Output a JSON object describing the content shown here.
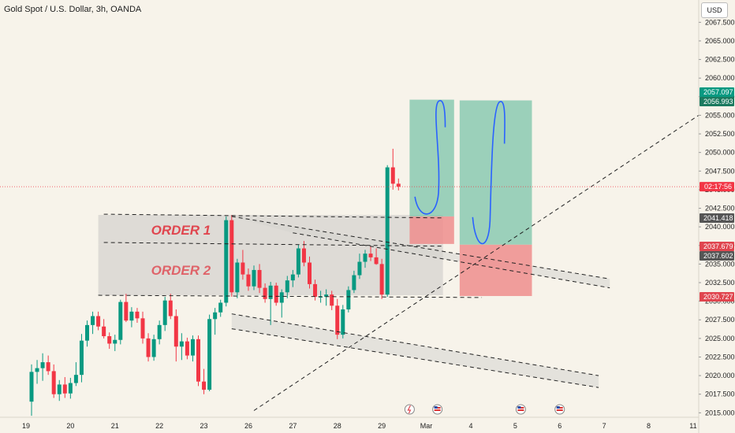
{
  "header": {
    "title": "Gold Spot / U.S. Dollar, 3h, OANDA",
    "currency_button": "USD"
  },
  "colors": {
    "background": "#f7f3ea",
    "up": "#089981",
    "down": "#f23645",
    "zone_fill": "#d6d3cf",
    "profit": "#7cc4a9",
    "loss": "#ee8d8d",
    "hand_drawn": "#2a62ff"
  },
  "chart_data": {
    "type": "candlestick",
    "title": "Gold Spot / U.S. Dollar, 3h, OANDA",
    "y_axis": {
      "range": [
        2014.4,
        2070.5
      ],
      "ticks": [
        "2067.500",
        "2065.000",
        "2062.500",
        "2060.000",
        "2057.500",
        "2055.000",
        "2052.500",
        "2050.000",
        "2047.500",
        "2045.000",
        "2042.500",
        "2040.000",
        "2037.500",
        "2035.000",
        "2032.500",
        "2030.000",
        "2027.500",
        "2025.000",
        "2022.500",
        "2020.000",
        "2017.500",
        "2015.000"
      ]
    },
    "x_axis": {
      "ticks": [
        {
          "label": "19",
          "bar": -1
        },
        {
          "label": "20",
          "bar": 7
        },
        {
          "label": "21",
          "bar": 15
        },
        {
          "label": "22",
          "bar": 23
        },
        {
          "label": "23",
          "bar": 31
        },
        {
          "label": "26",
          "bar": 39
        },
        {
          "label": "27",
          "bar": 47
        },
        {
          "label": "28",
          "bar": 55
        },
        {
          "label": "29",
          "bar": 63
        },
        {
          "label": "Mar",
          "bar": 71
        },
        {
          "label": "4",
          "bar": 79
        },
        {
          "label": "5",
          "bar": 87
        },
        {
          "label": "6",
          "bar": 95
        },
        {
          "label": "7",
          "bar": 103
        },
        {
          "label": "8",
          "bar": 111
        },
        {
          "label": "11",
          "bar": 119
        }
      ]
    },
    "candles": [
      [
        2016.5,
        2021.5,
        2014.6,
        2020.5
      ],
      [
        2020.5,
        2022.1,
        2018.9,
        2021.0
      ],
      [
        2021.0,
        2023.0,
        2019.3,
        2021.8
      ],
      [
        2021.8,
        2022.7,
        2020.1,
        2020.6
      ],
      [
        2020.6,
        2021.5,
        2017.0,
        2017.5
      ],
      [
        2017.5,
        2019.4,
        2016.6,
        2018.8
      ],
      [
        2018.8,
        2019.8,
        2017.0,
        2017.6
      ],
      [
        2017.6,
        2019.7,
        2016.9,
        2019.0
      ],
      [
        2019.0,
        2021.8,
        2018.6,
        2020.1
      ],
      [
        2020.1,
        2025.6,
        2019.1,
        2024.7
      ],
      [
        2024.7,
        2027.4,
        2023.9,
        2026.8
      ],
      [
        2026.8,
        2028.6,
        2025.6,
        2028.0
      ],
      [
        2028.0,
        2028.6,
        2026.1,
        2026.6
      ],
      [
        2026.6,
        2027.6,
        2025.0,
        2025.3
      ],
      [
        2025.3,
        2025.8,
        2023.6,
        2024.3
      ],
      [
        2024.3,
        2025.5,
        2023.3,
        2024.8
      ],
      [
        2024.8,
        2030.2,
        2024.2,
        2029.9
      ],
      [
        2029.9,
        2031.0,
        2027.2,
        2027.4
      ],
      [
        2027.4,
        2029.2,
        2026.5,
        2028.6
      ],
      [
        2028.6,
        2029.1,
        2027.1,
        2027.7
      ],
      [
        2027.7,
        2028.6,
        2024.3,
        2025.0
      ],
      [
        2025.0,
        2025.7,
        2021.9,
        2022.5
      ],
      [
        2022.5,
        2025.5,
        2022.0,
        2024.9
      ],
      [
        2024.9,
        2027.4,
        2024.2,
        2026.8
      ],
      [
        2026.8,
        2030.6,
        2026.0,
        2030.1
      ],
      [
        2030.1,
        2031.0,
        2027.6,
        2028.0
      ],
      [
        2028.0,
        2028.9,
        2021.9,
        2023.9
      ],
      [
        2023.9,
        2025.7,
        2022.1,
        2024.6
      ],
      [
        2024.6,
        2025.1,
        2022.2,
        2022.7
      ],
      [
        2022.7,
        2025.4,
        2021.9,
        2024.9
      ],
      [
        2024.9,
        2025.4,
        2018.6,
        2019.2
      ],
      [
        2019.2,
        2020.9,
        2017.5,
        2018.1
      ],
      [
        2018.1,
        2028.2,
        2017.9,
        2027.6
      ],
      [
        2027.6,
        2029.1,
        2025.5,
        2028.5
      ],
      [
        2028.5,
        2030.2,
        2027.9,
        2029.8
      ],
      [
        2029.8,
        2041.4,
        2029.3,
        2040.9
      ],
      [
        2040.9,
        2041.6,
        2030.6,
        2031.2
      ],
      [
        2031.2,
        2035.7,
        2030.4,
        2035.2
      ],
      [
        2035.2,
        2036.9,
        2032.9,
        2033.6
      ],
      [
        2033.6,
        2034.4,
        2031.4,
        2032.0
      ],
      [
        2032.0,
        2034.8,
        2031.5,
        2034.2
      ],
      [
        2034.2,
        2035.0,
        2031.1,
        2031.8
      ],
      [
        2031.8,
        2032.4,
        2029.8,
        2030.3
      ],
      [
        2030.3,
        2032.6,
        2026.8,
        2032.1
      ],
      [
        2032.1,
        2032.5,
        2029.4,
        2029.8
      ],
      [
        2029.8,
        2031.6,
        2027.8,
        2031.2
      ],
      [
        2031.2,
        2033.4,
        2030.4,
        2032.8
      ],
      [
        2032.8,
        2034.2,
        2031.9,
        2033.6
      ],
      [
        2033.6,
        2037.6,
        2033.2,
        2037.1
      ],
      [
        2037.1,
        2038.1,
        2034.7,
        2035.2
      ],
      [
        2035.2,
        2036.0,
        2031.7,
        2032.3
      ],
      [
        2032.3,
        2032.9,
        2030.1,
        2030.6
      ],
      [
        2030.6,
        2031.4,
        2029.8,
        2030.6
      ],
      [
        2030.6,
        2031.6,
        2029.4,
        2030.9
      ],
      [
        2030.9,
        2031.4,
        2028.8,
        2029.4
      ],
      [
        2029.4,
        2030.3,
        2024.9,
        2025.5
      ],
      [
        2025.5,
        2029.5,
        2025.0,
        2028.9
      ],
      [
        2028.9,
        2032.0,
        2028.5,
        2031.5
      ],
      [
        2031.5,
        2034.1,
        2031.1,
        2033.5
      ],
      [
        2033.5,
        2036.4,
        2033.0,
        2035.3
      ],
      [
        2035.3,
        2036.9,
        2034.5,
        2036.4
      ],
      [
        2036.4,
        2037.4,
        2035.4,
        2035.9
      ],
      [
        2035.9,
        2037.1,
        2034.9,
        2035.0
      ],
      [
        2035.0,
        2035.7,
        2030.3,
        2030.9
      ],
      [
        2030.9,
        2048.3,
        2030.6,
        2048.0
      ],
      [
        2048.0,
        2050.5,
        2045.0,
        2045.8
      ],
      [
        2045.8,
        2046.5,
        2044.9,
        2045.4
      ]
    ],
    "current_price": {
      "value": 2045.4,
      "countdown": "02:17:56"
    },
    "price_badges": [
      {
        "value": 2057.097,
        "label": "2057.097",
        "kind": "target"
      },
      {
        "value": 2056.993,
        "label": "2056.993",
        "kind": "target2"
      },
      {
        "value": 2041.418,
        "label": "2041.418",
        "kind": "entry"
      },
      {
        "value": 2037.679,
        "label": "2037.679",
        "kind": "stop"
      },
      {
        "value": 2037.602,
        "label": "2037.602",
        "kind": "entry"
      },
      {
        "value": 2030.727,
        "label": "2030.727",
        "kind": "stop"
      }
    ],
    "zones": [
      {
        "label": "ORDER 1",
        "top": 2041.6,
        "bottom": 2037.6,
        "bar_start": 12,
        "bar_end": 74
      },
      {
        "label": "ORDER 2",
        "top": 2037.6,
        "bottom": 2030.8,
        "bar_start": 12,
        "bar_end": 74
      }
    ],
    "channel_lines": [
      [
        [
          13,
          2041.7
        ],
        [
          74,
          2041.2
        ]
      ],
      [
        [
          13,
          2037.9
        ],
        [
          74,
          2037.4
        ]
      ],
      [
        [
          12,
          2030.8
        ],
        [
          81,
          2030.5
        ]
      ],
      [
        [
          36,
          2041.4
        ],
        [
          104,
          2033.0
        ]
      ],
      [
        [
          47,
          2039.2
        ],
        [
          104,
          2031.8
        ]
      ],
      [
        [
          36,
          2028.3
        ],
        [
          102,
          2020.0
        ]
      ],
      [
        [
          36,
          2026.3
        ],
        [
          102,
          2018.4
        ]
      ]
    ],
    "trend_line": [
      [
        40,
        2015.3
      ],
      [
        122,
        2056.0
      ]
    ],
    "positions": [
      {
        "bar_start": 68,
        "bar_end": 76,
        "entry": 2041.4,
        "target": 2057.1,
        "stop": 2037.7
      },
      {
        "bar_start": 77,
        "bar_end": 90,
        "entry": 2037.6,
        "target": 2057.0,
        "stop": 2030.7
      }
    ],
    "event_icons": [
      {
        "bar": 68,
        "kind": "flash"
      },
      {
        "bar": 73,
        "kind": "flag"
      },
      {
        "bar": 88,
        "kind": "flag"
      },
      {
        "bar": 95,
        "kind": "flag"
      }
    ]
  }
}
